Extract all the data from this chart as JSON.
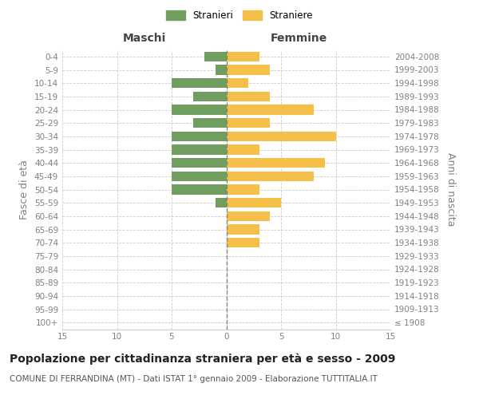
{
  "age_groups": [
    "100+",
    "95-99",
    "90-94",
    "85-89",
    "80-84",
    "75-79",
    "70-74",
    "65-69",
    "60-64",
    "55-59",
    "50-54",
    "45-49",
    "40-44",
    "35-39",
    "30-34",
    "25-29",
    "20-24",
    "15-19",
    "10-14",
    "5-9",
    "0-4"
  ],
  "birth_years": [
    "≤ 1908",
    "1909-1913",
    "1914-1918",
    "1919-1923",
    "1924-1928",
    "1929-1933",
    "1934-1938",
    "1939-1943",
    "1944-1948",
    "1949-1953",
    "1954-1958",
    "1959-1963",
    "1964-1968",
    "1969-1973",
    "1974-1978",
    "1979-1983",
    "1984-1988",
    "1989-1993",
    "1994-1998",
    "1999-2003",
    "2004-2008"
  ],
  "males": [
    0,
    0,
    0,
    0,
    0,
    0,
    0,
    0,
    0,
    1,
    5,
    5,
    5,
    5,
    5,
    3,
    5,
    3,
    5,
    1,
    2
  ],
  "females": [
    0,
    0,
    0,
    0,
    0,
    0,
    3,
    3,
    4,
    5,
    3,
    8,
    9,
    3,
    10,
    4,
    8,
    4,
    2,
    4,
    3
  ],
  "male_color": "#6f9e5e",
  "female_color": "#f5c04a",
  "xlim": 15,
  "title": "Popolazione per cittadinanza straniera per età e sesso - 2009",
  "subtitle": "COMUNE DI FERRANDINA (MT) - Dati ISTAT 1° gennaio 2009 - Elaborazione TUTTITALIA.IT",
  "legend_male": "Stranieri",
  "legend_female": "Straniere",
  "maschi_label": "Maschi",
  "femmine_label": "Femmine",
  "ylabel_left": "Fasce di età",
  "ylabel_right": "Anni di nascita",
  "bar_height": 0.75,
  "bg_color": "#ffffff",
  "grid_color": "#cccccc",
  "tick_color": "#808080",
  "center_line_color": "#888870",
  "title_fontsize": 10,
  "subtitle_fontsize": 7.5,
  "axis_label_fontsize": 9,
  "tick_fontsize": 7.5
}
